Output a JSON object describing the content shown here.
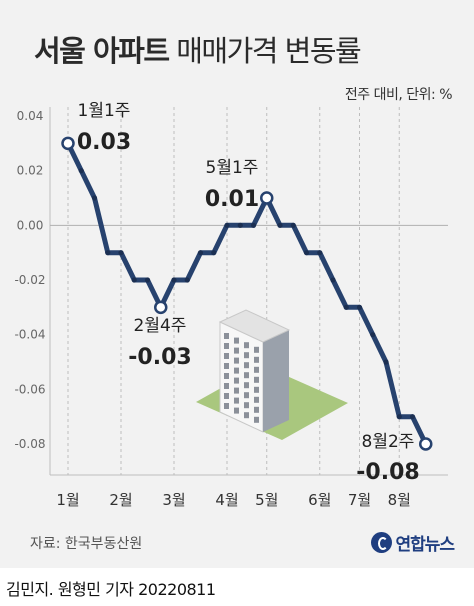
{
  "title_bold": "서울 아파트",
  "title_rest": "매매가격 변동률",
  "unit_note": "전주 대비, 단위: %",
  "source": "자료: 한국부동산원",
  "logo": "연합뉴스",
  "byline": "김민지. 원형민 기자  20220811",
  "colors": {
    "line": "#27426e",
    "background": "#f2f2f2",
    "grid": "#bdbdbd"
  },
  "chart_data": {
    "type": "line",
    "title": "서울 아파트 매매가격 변동률",
    "xlabel": "",
    "ylabel": "",
    "ylim": [
      -0.08,
      0.04
    ],
    "yticks": [
      0.04,
      0.02,
      0.0,
      -0.02,
      -0.04,
      -0.06,
      -0.08
    ],
    "ytick_labels": [
      "0.04",
      "0.02",
      "0.00",
      "-0.02",
      "-0.04",
      "-0.06",
      "-0.08"
    ],
    "x_labels": [
      "1월",
      "2월",
      "3월",
      "4월",
      "5월",
      "6월",
      "7월",
      "8월"
    ],
    "x_label_positions": [
      0,
      4,
      8,
      12,
      15,
      19,
      22,
      25
    ],
    "values": [
      0.03,
      0.02,
      0.01,
      -0.01,
      -0.01,
      -0.02,
      -0.02,
      -0.03,
      -0.02,
      -0.02,
      -0.01,
      -0.01,
      0.0,
      0.0,
      0.0,
      0.01,
      0.0,
      0.0,
      -0.01,
      -0.01,
      -0.02,
      -0.03,
      -0.03,
      -0.04,
      -0.05,
      -0.07,
      -0.07,
      -0.08
    ],
    "grid": "vertical dashed",
    "annotations": [
      {
        "index": 0,
        "label": "1월1주",
        "value": "0.03"
      },
      {
        "index": 7,
        "label": "2월4주",
        "value": "-0.03"
      },
      {
        "index": 15,
        "label": "5월1주",
        "value": "0.01"
      },
      {
        "index": 27,
        "label": "8월2주",
        "value": "-0.08"
      }
    ]
  }
}
